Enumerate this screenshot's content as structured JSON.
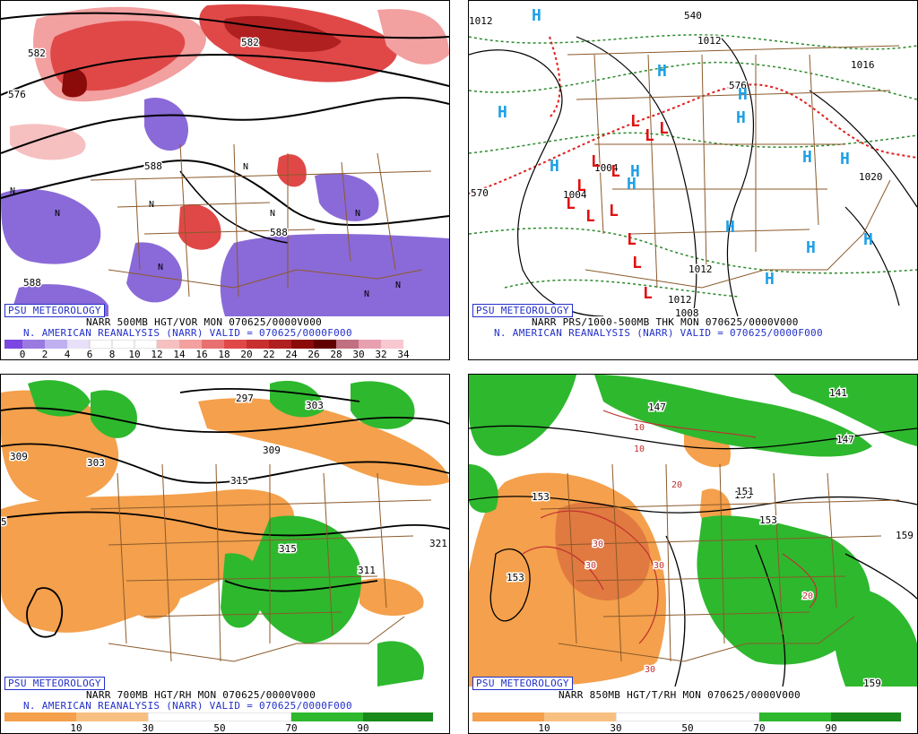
{
  "panels": [
    {
      "id": "tl",
      "logo": "PSU METEOROLOGY",
      "caption1": "NARR 500MB HGT/VOR MON 070625/0000V000",
      "caption2": "N. AMERICAN REANALYSIS (NARR) VALID = 070625/0000F000",
      "colorbar_ticks": [
        "0",
        "2",
        "4",
        "6",
        "8",
        "10",
        "12",
        "14",
        "16",
        "18",
        "20",
        "22",
        "24",
        "26",
        "28",
        "30",
        "32",
        "34"
      ],
      "contour_labels": [
        "576",
        "582",
        "588",
        "588",
        "588",
        "588",
        "588",
        "582"
      ],
      "marker_n": "N"
    },
    {
      "id": "tr",
      "logo": "PSU METEOROLOGY",
      "caption1": "NARR PRS/1000-500MB THK MON 070625/0000V000",
      "caption2": "N. AMERICAN REANALYSIS (NARR) VALID = 070625/0000F000",
      "contour_labels": [
        "1012",
        "540",
        "1012",
        "1016",
        "570",
        "576",
        "1004",
        "1004",
        "1012",
        "1012",
        "1008",
        "1020"
      ],
      "marker_h": "H",
      "marker_l": "L"
    },
    {
      "id": "bl",
      "logo": "PSU METEOROLOGY",
      "caption1": "NARR 700MB HGT/RH MON 070625/0000V000",
      "caption2": "N. AMERICAN REANALYSIS (NARR) VALID = 070625/0000F000",
      "colorbar_ticks": [
        "10",
        "30",
        "50",
        "70",
        "90"
      ],
      "contour_labels": [
        "297",
        "303",
        "309",
        "303",
        "309",
        "315",
        "315",
        "321",
        "311",
        "5"
      ]
    },
    {
      "id": "br",
      "logo": "PSU METEOROLOGY",
      "caption1": "NARR 850MB HGT/T/RH MON 070625/0000V000",
      "caption2": "",
      "colorbar_ticks": [
        "10",
        "30",
        "50",
        "70",
        "90"
      ],
      "contour_labels": [
        "147",
        "141",
        "153",
        "153",
        "147",
        "153",
        "159",
        "159",
        "153",
        "151"
      ],
      "temp_labels": [
        "10",
        "10",
        "20",
        "30",
        "30",
        "30",
        "20",
        "30"
      ]
    }
  ],
  "colors": {
    "caption_blue": "#2330c8",
    "vort_pos_dark": "#8b0a0a",
    "vort_pos_mid": "#e04848",
    "vort_pos_light": "#f6a0a0",
    "vort_neg": "#8a6ad8",
    "rh_dry": "#f4a04c",
    "rh_wet": "#2eb82e",
    "thickness": "#2a8a2a",
    "thickness_540": "#e02020",
    "high": "#1fa0e6",
    "low": "#e01010",
    "borders": "#8b5a2b"
  }
}
